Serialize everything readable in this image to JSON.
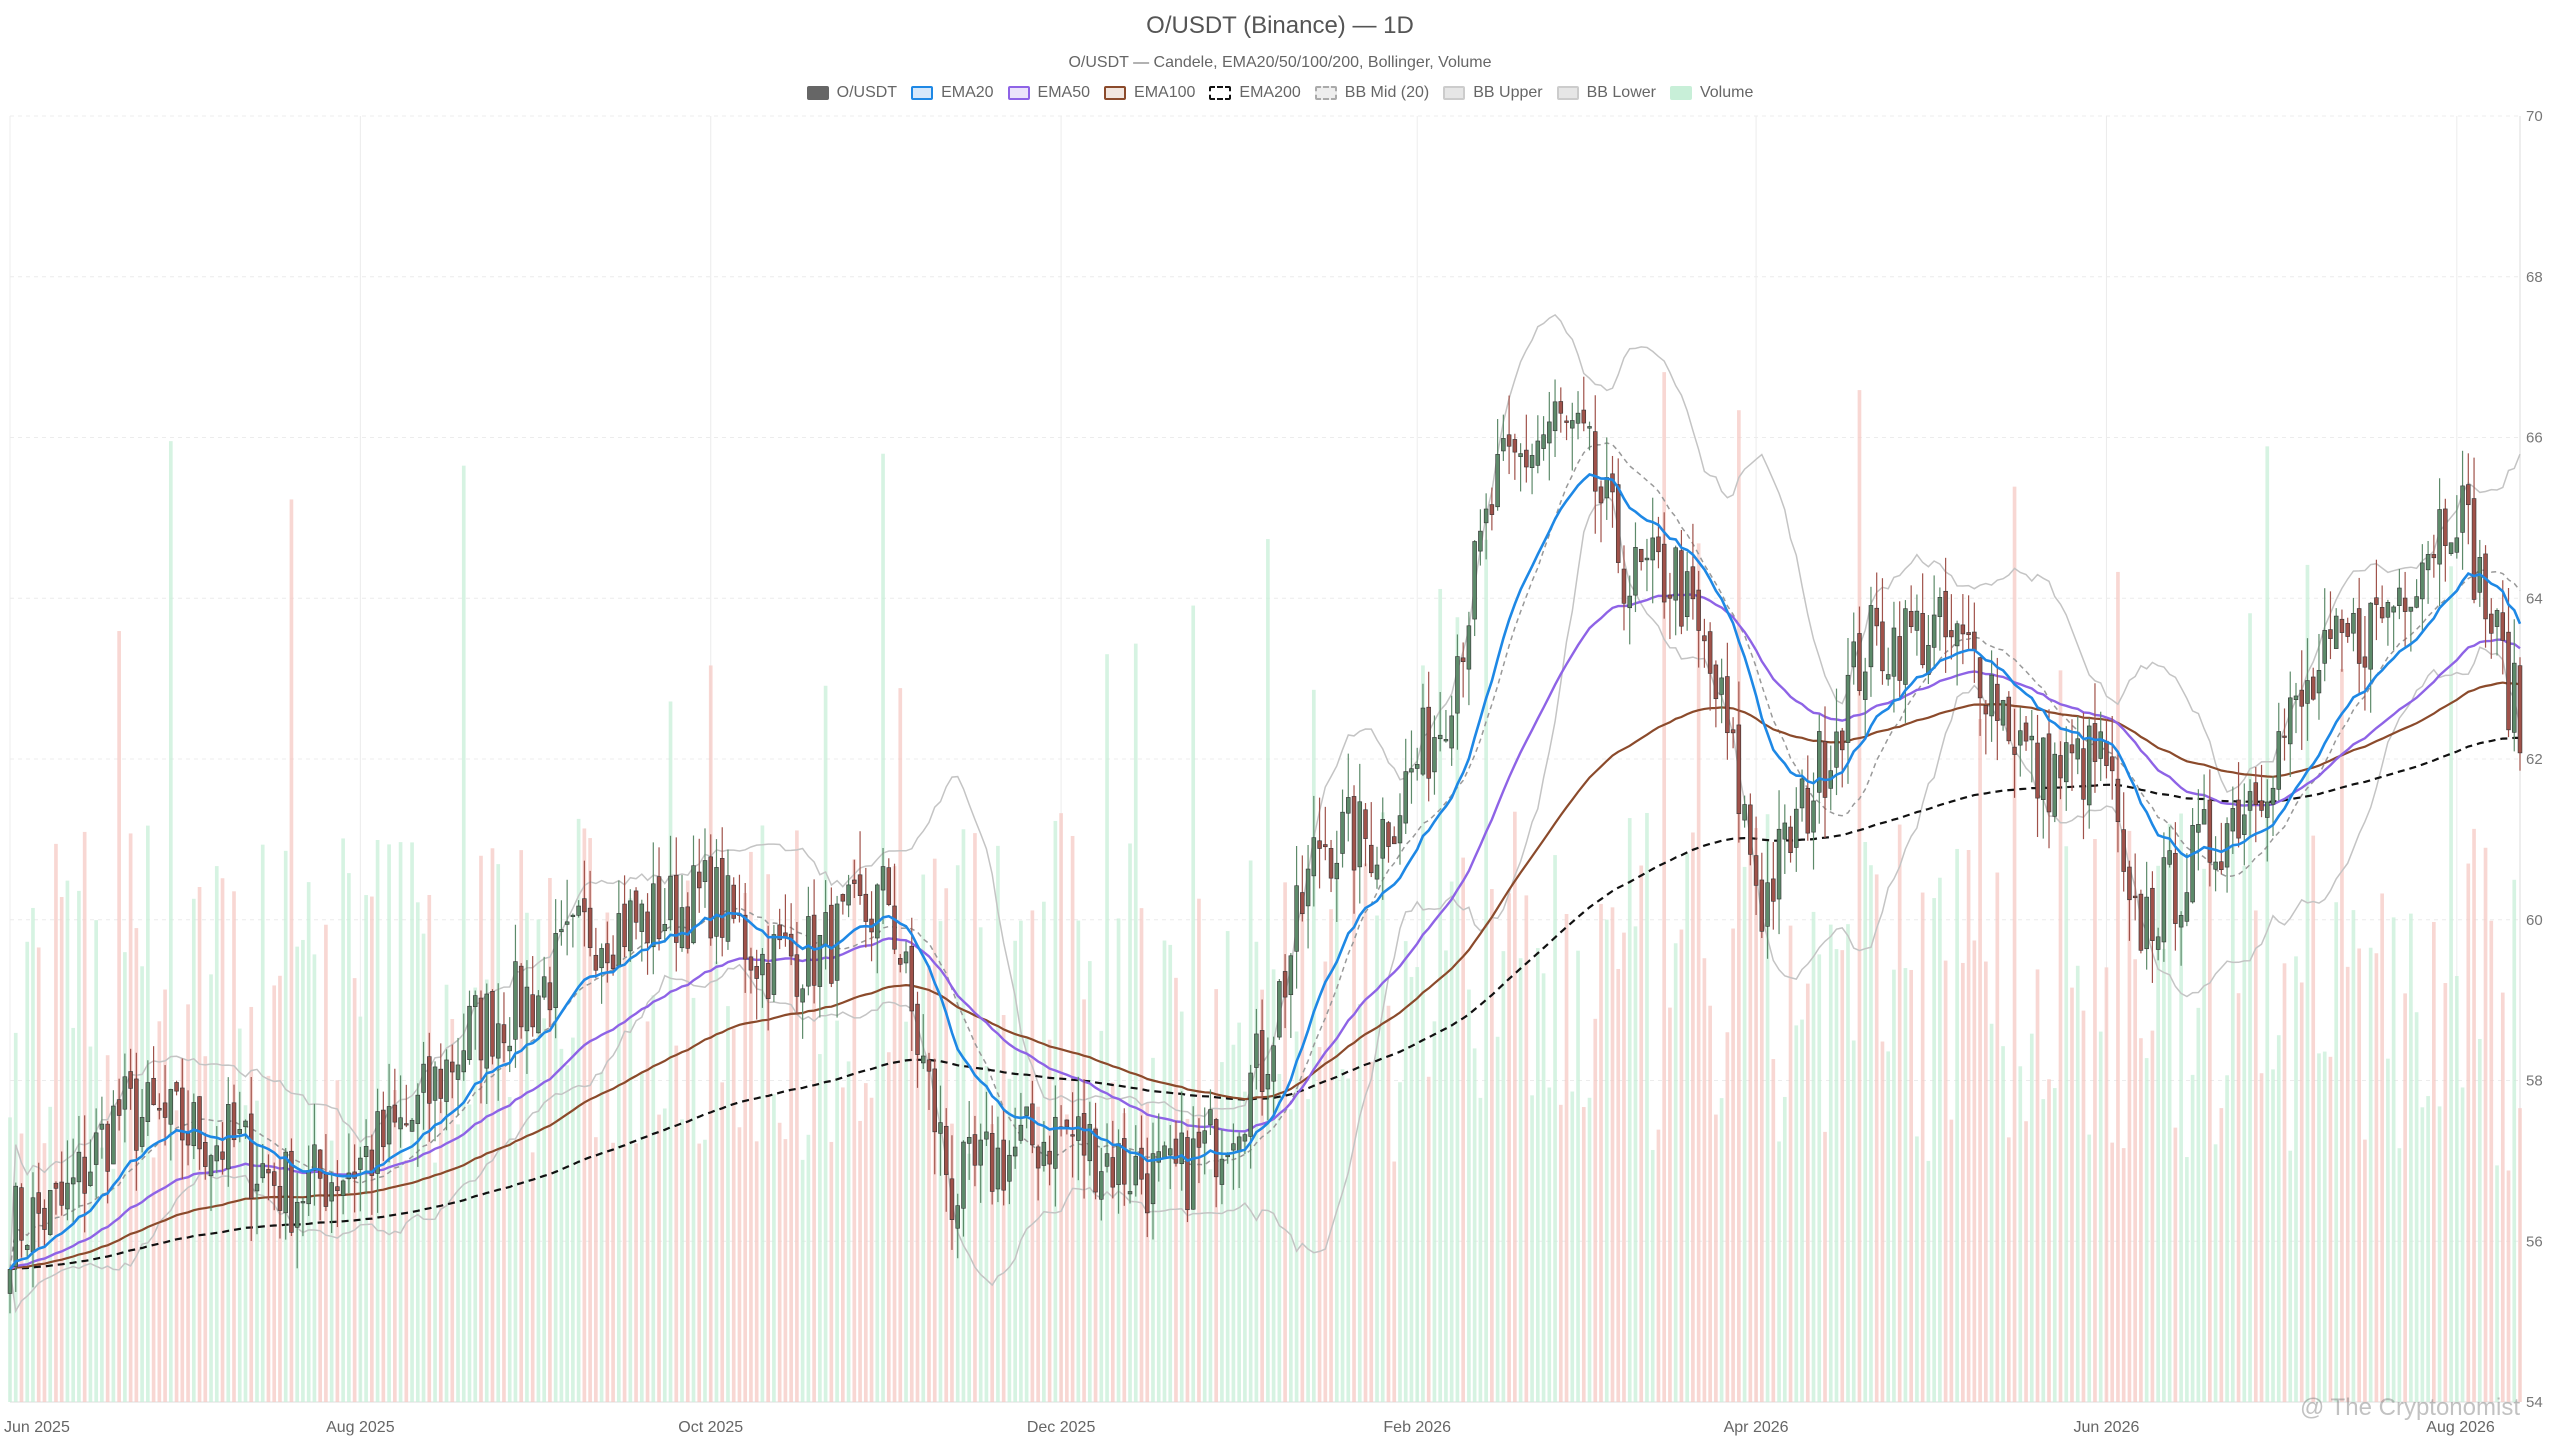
{
  "header": {
    "title": "O/USDT (Binance) — 1D",
    "subtitle": "O/USDT — Candele, EMA20/50/100/200, Bollinger, Volume"
  },
  "legend": [
    {
      "label": "O/USDT",
      "color": "#666666",
      "fill": "#666666",
      "style": "solid"
    },
    {
      "label": "EMA20",
      "color": "#1e88e5",
      "fill": "#d6e8fb",
      "style": "solid"
    },
    {
      "label": "EMA50",
      "color": "#8e63e6",
      "fill": "#ebe3fb",
      "style": "solid"
    },
    {
      "label": "EMA100",
      "color": "#8b4a2b",
      "fill": "#f2e6df",
      "style": "solid"
    },
    {
      "label": "EMA200",
      "color": "#111111",
      "fill": "#ffffff",
      "style": "dashed"
    },
    {
      "label": "BB Mid (20)",
      "color": "#aaaaaa",
      "fill": "#eeeeee",
      "style": "dashed"
    },
    {
      "label": "BB Upper",
      "color": "#cccccc",
      "fill": "#e6e6e6",
      "style": "solid"
    },
    {
      "label": "BB Lower",
      "color": "#cccccc",
      "fill": "#e6e6e6",
      "style": "solid"
    },
    {
      "label": "Volume",
      "color": "#c8efd8",
      "fill": "#c8efd8",
      "style": "solid"
    }
  ],
  "colors": {
    "up": "#5d8a6a",
    "down": "#a0524a",
    "volume_up": "#c8efd8",
    "volume_down": "#f6c9c4",
    "grid": "#ececec"
  },
  "watermark": "@ The Cryptonomist",
  "chart_data": {
    "type": "candlestick",
    "ylim": [
      54,
      70
    ],
    "y_ticks": [
      54,
      56,
      58,
      60,
      62,
      64,
      66,
      68,
      70
    ],
    "x_ticks": [
      "Jun 2025",
      "Aug 2025",
      "Oct 2025",
      "Dec 2025",
      "Feb 2026",
      "Apr 2026",
      "Jun 2026",
      "Aug 2026"
    ],
    "grid": true,
    "legend_position": "top-center",
    "close_anchors": [
      [
        "2025-06-01",
        56.2
      ],
      [
        "2025-06-10",
        56.4
      ],
      [
        "2025-06-20",
        57.6
      ],
      [
        "2025-07-01",
        57.4
      ],
      [
        "2025-07-10",
        57.2
      ],
      [
        "2025-07-20",
        56.6
      ],
      [
        "2025-08-01",
        57.0
      ],
      [
        "2025-08-10",
        57.5
      ],
      [
        "2025-08-20",
        58.6
      ],
      [
        "2025-09-01",
        59.1
      ],
      [
        "2025-09-10",
        59.9
      ],
      [
        "2025-09-20",
        60.0
      ],
      [
        "2025-10-01",
        60.3
      ],
      [
        "2025-10-10",
        59.5
      ],
      [
        "2025-10-20",
        59.6
      ],
      [
        "2025-11-01",
        60.3
      ],
      [
        "2025-11-05",
        58.8
      ],
      [
        "2025-11-12",
        56.6
      ],
      [
        "2025-11-20",
        57.0
      ],
      [
        "2025-12-01",
        57.4
      ],
      [
        "2025-12-10",
        57.0
      ],
      [
        "2025-12-20",
        56.7
      ],
      [
        "2025-12-27",
        57.2
      ],
      [
        "2026-01-05",
        58.2
      ],
      [
        "2026-01-15",
        61.0
      ],
      [
        "2026-01-25",
        61.0
      ],
      [
        "2026-02-05",
        62.5
      ],
      [
        "2026-02-15",
        65.4
      ],
      [
        "2026-02-25",
        66.2
      ],
      [
        "2026-03-02",
        65.8
      ],
      [
        "2026-03-10",
        64.2
      ],
      [
        "2026-03-18",
        64.3
      ],
      [
        "2026-03-26",
        62.6
      ],
      [
        "2026-04-02",
        60.2
      ],
      [
        "2026-04-10",
        61.5
      ],
      [
        "2026-04-20",
        63.4
      ],
      [
        "2026-05-01",
        63.6
      ],
      [
        "2026-05-10",
        63.2
      ],
      [
        "2026-05-20",
        61.8
      ],
      [
        "2026-06-01",
        62.0
      ],
      [
        "2026-06-05",
        59.8
      ],
      [
        "2026-06-15",
        60.6
      ],
      [
        "2026-06-25",
        61.5
      ],
      [
        "2026-07-01",
        62.2
      ],
      [
        "2026-07-10",
        63.2
      ],
      [
        "2026-07-20",
        63.9
      ],
      [
        "2026-08-01",
        65.3
      ],
      [
        "2026-08-08",
        63.4
      ],
      [
        "2026-08-12",
        62.4
      ]
    ]
  }
}
